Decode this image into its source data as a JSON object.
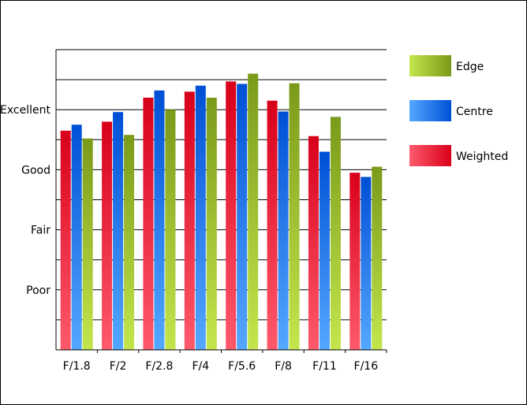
{
  "chart_data": {
    "type": "bar",
    "title": "",
    "xlabel": "",
    "ylabel": "",
    "categories": [
      "F/1.8",
      "F/2",
      "F/2.8",
      "F/4",
      "F/5.6",
      "F/8",
      "F/11",
      "F/16"
    ],
    "y_tick_labels": [
      {
        "value": 1,
        "label": "Poor"
      },
      {
        "value": 2,
        "label": "Fair"
      },
      {
        "value": 3,
        "label": "Good"
      },
      {
        "value": 4,
        "label": "Excellent"
      }
    ],
    "ylim": [
      0,
      5
    ],
    "grid": true,
    "legend_position": "right",
    "legend_order": [
      "Edge",
      "Centre",
      "Weighted"
    ],
    "series": [
      {
        "name": "Weighted",
        "color": "#e8001f",
        "values": [
          3.65,
          3.8,
          4.2,
          4.3,
          4.47,
          4.15,
          3.56,
          2.95
        ]
      },
      {
        "name": "Centre",
        "color": "#0a5fe0",
        "values": [
          3.75,
          3.96,
          4.32,
          4.4,
          4.43,
          3.97,
          3.3,
          2.88
        ]
      },
      {
        "name": "Edge",
        "color": "#8db424",
        "values": [
          3.52,
          3.58,
          4.0,
          4.2,
          4.6,
          4.44,
          3.88,
          3.05
        ]
      }
    ]
  }
}
